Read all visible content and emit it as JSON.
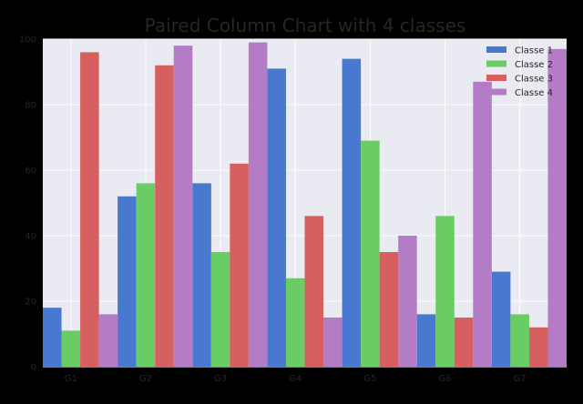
{
  "chart_data": {
    "type": "bar",
    "title": "Paired Column Chart with 4 classes",
    "categories": [
      "G1",
      "G2",
      "G3",
      "G4",
      "G5",
      "G6",
      "G7"
    ],
    "series": [
      {
        "name": "Classe 1",
        "color": "#4878cf",
        "values": [
          18,
          52,
          56,
          91,
          94,
          16,
          29
        ]
      },
      {
        "name": "Classe 2",
        "color": "#6acc65",
        "values": [
          11,
          56,
          35,
          27,
          69,
          46,
          16
        ]
      },
      {
        "name": "Classe 3",
        "color": "#d65f5f",
        "values": [
          96,
          92,
          62,
          46,
          35,
          15,
          12
        ]
      },
      {
        "name": "Classe 4",
        "color": "#b47cc7",
        "values": [
          16,
          98,
          99,
          15,
          40,
          87,
          97
        ]
      }
    ],
    "xlabel": "",
    "ylabel": "",
    "ylim": [
      0,
      100
    ],
    "yticks": [
      0,
      20,
      40,
      60,
      80,
      100
    ],
    "grid": true,
    "legend_position": "top-right",
    "background_color": "#eaeaf2",
    "page_background": "#000000"
  }
}
